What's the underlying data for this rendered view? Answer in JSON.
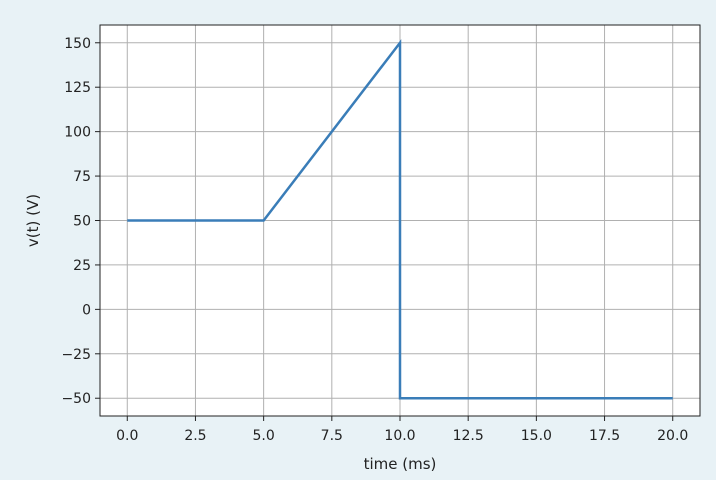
{
  "chart_data": {
    "type": "line",
    "xlabel": "time (ms)",
    "ylabel": "v(t) (V)",
    "xlim": [
      -1,
      21
    ],
    "ylim": [
      -60,
      160
    ],
    "grid": true,
    "x_ticks": [
      0,
      2.5,
      5,
      7.5,
      10,
      12.5,
      15,
      17.5,
      20
    ],
    "x_tick_labels": [
      "0.0",
      "2.5",
      "5.0",
      "7.5",
      "10.0",
      "12.5",
      "15.0",
      "17.5",
      "20.0"
    ],
    "y_ticks": [
      -50,
      -25,
      0,
      25,
      50,
      75,
      100,
      125,
      150
    ],
    "y_tick_labels": [
      "−50",
      "−25",
      "0",
      "25",
      "50",
      "75",
      "100",
      "125",
      "150"
    ],
    "series": [
      {
        "color": "#3a7db8",
        "x": [
          0,
          5,
          10,
          10,
          20
        ],
        "y": [
          50,
          50,
          150,
          -50,
          -50
        ]
      }
    ]
  }
}
